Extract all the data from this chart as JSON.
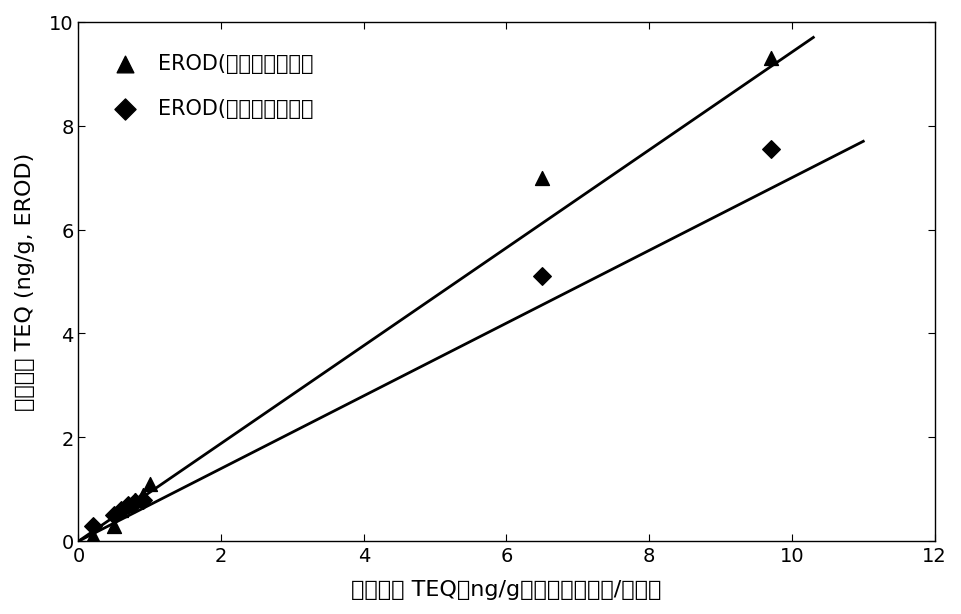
{
  "series1_label": "EROD(草鱼原代细胞）",
  "series2_label": "EROD(鼠肝癌细胞株）",
  "series1_x": [
    0.2,
    0.5,
    0.6,
    0.7,
    0.8,
    0.9,
    1.0,
    6.5,
    9.7
  ],
  "series1_y": [
    0.1,
    0.3,
    0.6,
    0.7,
    0.8,
    0.9,
    1.1,
    7.0,
    9.3
  ],
  "series2_x": [
    0.2,
    0.5,
    0.6,
    0.7,
    0.8,
    0.9,
    6.5,
    9.7
  ],
  "series2_y": [
    0.3,
    0.5,
    0.6,
    0.7,
    0.75,
    0.8,
    5.1,
    7.55
  ],
  "line1_x": [
    0.0,
    10.3
  ],
  "line1_y": [
    0.0,
    9.7
  ],
  "line2_x": [
    0.0,
    11.0
  ],
  "line2_y": [
    0.0,
    7.7
  ],
  "xlabel": "毒性当量 TEQ（ng/g）（高分辨色谱/质谱）",
  "ylabel": "毒性当量 TEQ (ng/g, EROD)",
  "xlim": [
    0,
    12
  ],
  "ylim": [
    0,
    10
  ],
  "xticks": [
    0,
    2,
    4,
    6,
    8,
    10,
    12
  ],
  "yticks": [
    0,
    2,
    4,
    6,
    8,
    10
  ],
  "background_color": "#ffffff",
  "line1_color": "#000000",
  "line2_color": "#000000",
  "marker1_color": "#000000",
  "marker2_color": "#000000",
  "fontsize_label": 16,
  "fontsize_tick": 14,
  "fontsize_legend": 15
}
